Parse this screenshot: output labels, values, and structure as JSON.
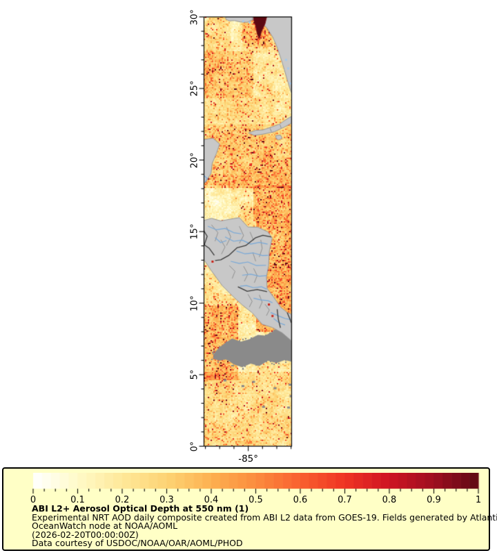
{
  "page": {
    "background": "#ffffff"
  },
  "legend": {
    "title": "ABI L2+ Aerosol Optical Depth at 550 nm (1)",
    "line1": "Experimental NRT AOD daily composite created from ABI L2 data from GOES-19. Fields generated by Atlantic",
    "line2": "OceanWatch node at NOAA/AOML",
    "line3": "(2026-02-20T00:00:00Z)",
    "line4": "Data courtesy of USDOC/NOAA/OAR/AOML/PHOD",
    "background": "#ffffc6",
    "border_color": "#000000"
  },
  "map_axis": {
    "x_label": "-85°"
  },
  "chart_data": {
    "type": "heatmap",
    "title": "ABI L2+ Aerosol Optical Depth at 550 nm (1)",
    "subtitle_lines": [
      "Experimental NRT AOD daily composite created from ABI L2 data from GOES-19. Fields generated by Atlantic",
      "OceanWatch node at NOAA/AOML",
      "(2026-02-20T00:00:00Z)",
      "Data courtesy of USDOC/NOAA/OAR/AOML/PHOD"
    ],
    "projection": "plate-carree",
    "lon_range": [
      -88.1,
      -81.96
    ],
    "lat_range": [
      0,
      30
    ],
    "x_tick_labels": [
      "-85°"
    ],
    "x_major_lons": [
      -85
    ],
    "x_minor_step_deg": 1,
    "y_tick_labels": [
      "30°",
      "25°",
      "20°",
      "15°",
      "10°",
      "5°",
      "0°"
    ],
    "y_major_lats": [
      30,
      25,
      20,
      15,
      10,
      5,
      0
    ],
    "y_minor_step_deg": 1,
    "colorbar": {
      "min": 0,
      "max": 1,
      "label_values": [
        "0",
        "0.1",
        "0.2",
        "0.3",
        "0.4",
        "0.5",
        "0.6",
        "0.7",
        "0.8",
        "0.9",
        "1"
      ],
      "values": [
        0,
        0.1,
        0.2,
        0.3,
        0.4,
        0.5,
        0.6,
        0.7,
        0.8,
        0.9,
        1
      ],
      "minor_tick_step": 0.025,
      "n_steps": 50,
      "colormap_stops": [
        [
          0.0,
          "#ffffff"
        ],
        [
          0.1,
          "#fffac8"
        ],
        [
          0.2,
          "#fee899"
        ],
        [
          0.3,
          "#fdd374"
        ],
        [
          0.4,
          "#fdb050"
        ],
        [
          0.5,
          "#fb8c3e"
        ],
        [
          0.6,
          "#f9602f"
        ],
        [
          0.7,
          "#ef3423"
        ],
        [
          0.8,
          "#ce1322"
        ],
        [
          0.9,
          "#9e0e20"
        ],
        [
          1.0,
          "#5d0a13"
        ]
      ]
    },
    "features": {
      "land_color": "#c8c8c8",
      "no_data_color": "#8a8a8a",
      "coast_color": "#979797",
      "border_color": "#383838",
      "admin_color": "#8f8f8f",
      "river_color": "#77a8d8",
      "lake_color": "#a6c8e8",
      "plume_color": "#5c0912",
      "hotspot_color": "#c81e14",
      "noise_seed": 7,
      "base_aod": 0.2,
      "aod_zones": [
        {
          "lat": [
            27.6,
            30.0
          ],
          "lon": [
            -88.2,
            -86.2
          ],
          "add": 0.05
        },
        {
          "lat": [
            27.9,
            30.0
          ],
          "lon": [
            -85.4,
            -83.3
          ],
          "add": 0.1
        },
        {
          "lat": [
            24.3,
            27.6
          ],
          "lon": [
            -88.2,
            -84.6
          ],
          "add": 0.1
        },
        {
          "lat": [
            22.5,
            24.3
          ],
          "lon": [
            -88.2,
            -81.8
          ],
          "add": 0.04
        },
        {
          "lat": [
            18.0,
            22.5
          ],
          "lon": [
            -88.2,
            -81.8
          ],
          "add": 0.11
        },
        {
          "lat": [
            15.7,
            18.2
          ],
          "lon": [
            -84.6,
            -81.8
          ],
          "add": 0.13
        },
        {
          "lat": [
            15.7,
            18.2
          ],
          "lon": [
            -88.2,
            -86.2
          ],
          "add": -0.05
        },
        {
          "lat": [
            8.0,
            15.7
          ],
          "lon": [
            -84.4,
            -81.8
          ],
          "add": 0.17
        },
        {
          "lat": [
            4.6,
            9.8
          ],
          "lon": [
            -88.2,
            -85.7
          ],
          "add": 0.16
        },
        {
          "lat": [
            0.0,
            5.2
          ],
          "lon": [
            -88.2,
            -81.8
          ],
          "add": 0.06
        },
        {
          "lat": [
            9.8,
            14.5
          ],
          "lon": [
            -88.2,
            -86.0
          ],
          "add": 0.02
        }
      ],
      "land_polygons": [
        [
          [
            -86.55,
            30
          ],
          [
            -84.67,
            30
          ],
          [
            -84.67,
            29.78
          ],
          [
            -85.05,
            29.6
          ],
          [
            -85.5,
            29.62
          ],
          [
            -85.95,
            29.72
          ],
          [
            -86.3,
            29.7
          ],
          [
            -86.55,
            29.82
          ]
        ],
        [
          [
            -84.67,
            30
          ],
          [
            -81.96,
            30
          ],
          [
            -81.96,
            24.7
          ],
          [
            -82.05,
            24.95
          ],
          [
            -82.25,
            25.6
          ],
          [
            -82.45,
            26.3
          ],
          [
            -82.7,
            27.1
          ],
          [
            -82.95,
            27.85
          ],
          [
            -83.25,
            28.55
          ],
          [
            -83.7,
            29.25
          ],
          [
            -84.15,
            29.62
          ],
          [
            -84.67,
            29.78
          ]
        ],
        [
          [
            -88.1,
            21.4
          ],
          [
            -87.45,
            21.5
          ],
          [
            -86.98,
            21.1
          ],
          [
            -87.2,
            20.45
          ],
          [
            -87.5,
            19.75
          ],
          [
            -87.58,
            19.05
          ],
          [
            -87.95,
            18.45
          ],
          [
            -88.1,
            18.35
          ]
        ],
        [
          [
            -84.95,
            21.87
          ],
          [
            -84.45,
            22.05
          ],
          [
            -83.95,
            22.08
          ],
          [
            -83.35,
            22.28
          ],
          [
            -82.8,
            22.48
          ],
          [
            -82.25,
            22.85
          ],
          [
            -81.96,
            23.02
          ],
          [
            -81.96,
            22.55
          ],
          [
            -82.45,
            22.28
          ],
          [
            -83.15,
            21.95
          ],
          [
            -83.95,
            21.78
          ],
          [
            -84.55,
            21.7
          ]
        ],
        [
          [
            -83.05,
            21.68
          ],
          [
            -82.72,
            21.72
          ],
          [
            -82.6,
            21.5
          ],
          [
            -82.85,
            21.38
          ],
          [
            -83.02,
            21.48
          ]
        ],
        [
          [
            -88.1,
            15.75
          ],
          [
            -87.55,
            15.9
          ],
          [
            -86.9,
            15.72
          ],
          [
            -86.2,
            15.85
          ],
          [
            -85.6,
            15.95
          ],
          [
            -85.0,
            15.3
          ],
          [
            -84.3,
            15.28
          ],
          [
            -83.6,
            14.95
          ],
          [
            -83.3,
            14.52
          ],
          [
            -83.5,
            13.6
          ],
          [
            -83.55,
            12.6
          ],
          [
            -83.7,
            11.8
          ],
          [
            -83.65,
            11.0
          ],
          [
            -83.2,
            10.4
          ],
          [
            -82.7,
            9.68
          ],
          [
            -82.25,
            9.32
          ],
          [
            -81.96,
            9.2
          ],
          [
            -81.96,
            7.35
          ],
          [
            -82.6,
            7.9
          ],
          [
            -83.3,
            8.28
          ],
          [
            -84.0,
            8.5
          ],
          [
            -84.7,
            9.3
          ],
          [
            -85.4,
            9.85
          ],
          [
            -86.0,
            10.4
          ],
          [
            -86.8,
            11.2
          ],
          [
            -87.6,
            12.3
          ],
          [
            -88.1,
            13.05
          ]
        ]
      ],
      "country_borders": [
        [
          [
            -83.35,
            14.6
          ],
          [
            -83.95,
            14.72
          ],
          [
            -84.45,
            14.55
          ],
          [
            -85.15,
            14.0
          ],
          [
            -85.75,
            13.85
          ],
          [
            -86.35,
            13.3
          ],
          [
            -86.9,
            13.0
          ],
          [
            -87.3,
            12.95
          ]
        ],
        [
          [
            -85.7,
            11.12
          ],
          [
            -85.05,
            10.8
          ],
          [
            -84.35,
            10.92
          ],
          [
            -83.66,
            10.78
          ]
        ],
        [
          [
            -82.95,
            9.55
          ],
          [
            -82.87,
            8.85
          ],
          [
            -82.72,
            8.25
          ]
        ],
        [
          [
            -88.1,
            15.05
          ],
          [
            -87.85,
            14.65
          ],
          [
            -88.05,
            14.05
          ],
          [
            -87.72,
            13.82
          ],
          [
            -87.35,
            13.32
          ]
        ],
        [
          [
            -82.25,
            9.32
          ],
          [
            -82.05,
            8.85
          ],
          [
            -81.96,
            8.6
          ]
        ]
      ],
      "admin_borders": [
        [
          [
            -87.55,
            15.45
          ],
          [
            -87.1,
            14.9
          ],
          [
            -87.3,
            14.3
          ]
        ],
        [
          [
            -86.5,
            15.3
          ],
          [
            -86.2,
            14.6
          ],
          [
            -86.5,
            14.0
          ]
        ],
        [
          [
            -85.6,
            15.35
          ],
          [
            -85.3,
            14.7
          ],
          [
            -85.6,
            14.15
          ]
        ],
        [
          [
            -84.85,
            14.95
          ],
          [
            -84.6,
            14.35
          ]
        ],
        [
          [
            -86.3,
            12.6
          ],
          [
            -85.9,
            12.2
          ],
          [
            -86.1,
            11.7
          ]
        ],
        [
          [
            -85.3,
            12.55
          ],
          [
            -85.0,
            12.0
          ],
          [
            -85.25,
            11.5
          ]
        ],
        [
          [
            -84.6,
            12.4
          ],
          [
            -84.35,
            11.9
          ],
          [
            -84.55,
            11.4
          ]
        ],
        [
          [
            -85.0,
            10.6
          ],
          [
            -84.7,
            10.1
          ],
          [
            -84.9,
            9.7
          ]
        ],
        [
          [
            -84.2,
            10.55
          ],
          [
            -84.0,
            10.05
          ],
          [
            -84.2,
            9.6
          ]
        ],
        [
          [
            -83.8,
            9.9
          ],
          [
            -83.5,
            9.5
          ],
          [
            -83.7,
            9.1
          ]
        ],
        [
          [
            -86.9,
            14.4
          ],
          [
            -86.6,
            13.9
          ],
          [
            -86.85,
            13.4
          ]
        ],
        [
          [
            -84.1,
            14.4
          ],
          [
            -84.0,
            13.8
          ],
          [
            -84.2,
            13.2
          ]
        ],
        [
          [
            -84.65,
            13.5
          ],
          [
            -84.45,
            12.9
          ]
        ],
        [
          [
            -83.45,
            22.2
          ],
          [
            -83.35,
            21.95
          ]
        ],
        [
          [
            -82.75,
            22.45
          ],
          [
            -82.65,
            22.15
          ]
        ]
      ],
      "rivers": [
        [
          [
            -87.8,
            15.35
          ],
          [
            -87.2,
            15.1
          ],
          [
            -86.6,
            15.2
          ],
          [
            -86.0,
            14.9
          ],
          [
            -85.45,
            14.82
          ]
        ],
        [
          [
            -86.6,
            14.6
          ],
          [
            -86.0,
            14.3
          ],
          [
            -85.4,
            14.38
          ],
          [
            -84.8,
            14.1
          ],
          [
            -84.2,
            14.22
          ],
          [
            -83.62,
            14.1
          ]
        ],
        [
          [
            -85.8,
            13.62
          ],
          [
            -85.2,
            13.42
          ],
          [
            -84.6,
            13.48
          ],
          [
            -84.0,
            13.3
          ],
          [
            -83.58,
            13.32
          ]
        ],
        [
          [
            -86.2,
            12.9
          ],
          [
            -85.6,
            12.75
          ],
          [
            -85.0,
            12.85
          ],
          [
            -84.4,
            12.6
          ],
          [
            -83.72,
            12.62
          ]
        ],
        [
          [
            -85.4,
            11.92
          ],
          [
            -84.8,
            12.0
          ],
          [
            -84.2,
            11.85
          ],
          [
            -83.7,
            11.9
          ]
        ],
        [
          [
            -85.55,
            11.15
          ],
          [
            -85.1,
            11.2
          ],
          [
            -84.6,
            11.05
          ],
          [
            -84.05,
            11.12
          ],
          [
            -83.68,
            10.95
          ]
        ],
        [
          [
            -84.6,
            10.32
          ],
          [
            -84.1,
            10.2
          ],
          [
            -83.6,
            10.15
          ],
          [
            -83.28,
            10.0
          ]
        ],
        [
          [
            -83.4,
            9.32
          ],
          [
            -82.9,
            9.1
          ],
          [
            -82.4,
            8.9
          ],
          [
            -82.0,
            8.82
          ]
        ],
        [
          [
            -88.1,
            18.9
          ],
          [
            -87.85,
            18.7
          ],
          [
            -87.98,
            18.45
          ]
        ],
        [
          [
            -87.3,
            14.55
          ],
          [
            -86.9,
            14.2
          ],
          [
            -86.5,
            14.35
          ]
        ],
        [
          [
            -83.2,
            8.9
          ],
          [
            -82.8,
            8.6
          ],
          [
            -82.4,
            8.45
          ]
        ]
      ],
      "no_data_polygon": [
        [
          -81.96,
          8.55
        ],
        [
          -82.35,
          8.3
        ],
        [
          -82.85,
          8.32
        ],
        [
          -83.25,
          8.0
        ],
        [
          -83.8,
          7.7
        ],
        [
          -84.3,
          7.75
        ],
        [
          -84.9,
          7.45
        ],
        [
          -85.5,
          7.28
        ],
        [
          -86.1,
          7.5
        ],
        [
          -86.6,
          7.18
        ],
        [
          -87.0,
          6.88
        ],
        [
          -87.35,
          6.5
        ],
        [
          -87.45,
          6.1
        ],
        [
          -87.0,
          5.95
        ],
        [
          -86.5,
          6.05
        ],
        [
          -86.0,
          5.7
        ],
        [
          -85.4,
          5.5
        ],
        [
          -84.8,
          5.75
        ],
        [
          -84.2,
          5.58
        ],
        [
          -83.6,
          5.95
        ],
        [
          -83.0,
          5.78
        ],
        [
          -82.4,
          6.0
        ],
        [
          -81.96,
          5.88
        ]
      ],
      "islets": [
        [
          -85.35,
          4.2
        ],
        [
          -83.1,
          4.05
        ],
        [
          -82.05,
          4.3
        ],
        [
          -83.9,
          2.75
        ],
        [
          -82.15,
          2.7
        ],
        [
          -84.6,
          4.5
        ],
        [
          -81.98,
          3.5
        ],
        [
          -86.6,
          4.6
        ]
      ],
      "lakes": [
        [
          -84.9,
          29.62
        ],
        [
          -85.35,
          29.7
        ],
        [
          -82.35,
          27.0
        ],
        [
          -82.2,
          26.4
        ],
        [
          -82.05,
          25.35
        ]
      ],
      "hotspots": [
        [
          -87.5,
          12.9
        ],
        [
          -82.95,
          10.45
        ],
        [
          -83.3,
          9.1
        ],
        [
          -83.55,
          9.9
        ]
      ],
      "plume_polygon": [
        [
          -84.6,
          30
        ],
        [
          -83.68,
          30
        ],
        [
          -83.8,
          29.5
        ],
        [
          -84.05,
          28.95
        ],
        [
          -84.2,
          28.45
        ],
        [
          -84.35,
          28.8
        ],
        [
          -84.45,
          29.35
        ],
        [
          -84.58,
          29.72
        ]
      ]
    }
  }
}
